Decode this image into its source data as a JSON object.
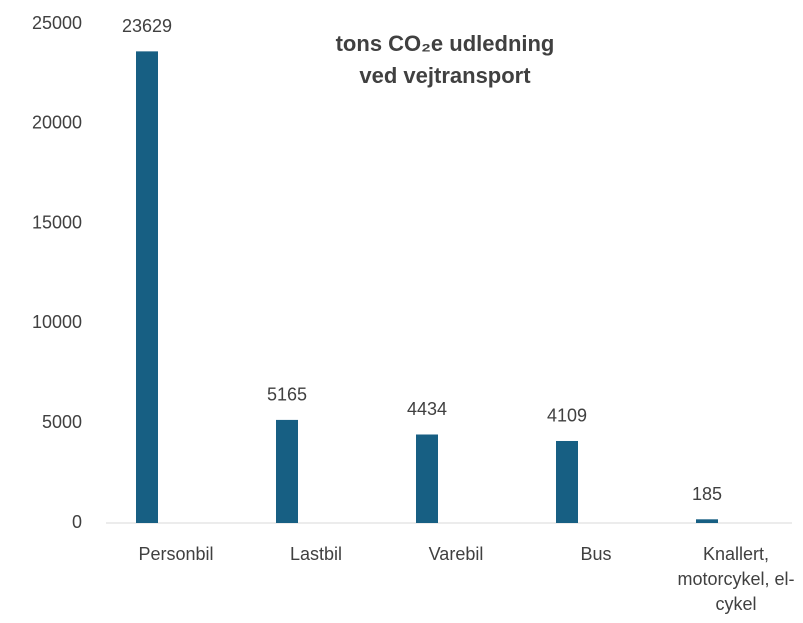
{
  "chart_data": {
    "type": "bar",
    "title": "tons CO₂e udledning ved vejtransport",
    "categories": [
      "Personbil",
      "Lastbil",
      "Varebil",
      "Bus",
      "Knallert, motorcykel, el-cykel"
    ],
    "values": [
      23629,
      5165,
      4434,
      4109,
      185
    ],
    "color": "#175f83",
    "ylim": [
      0,
      25000
    ],
    "yticks": [
      0,
      5000,
      10000,
      15000,
      20000,
      25000
    ],
    "grid": false
  }
}
